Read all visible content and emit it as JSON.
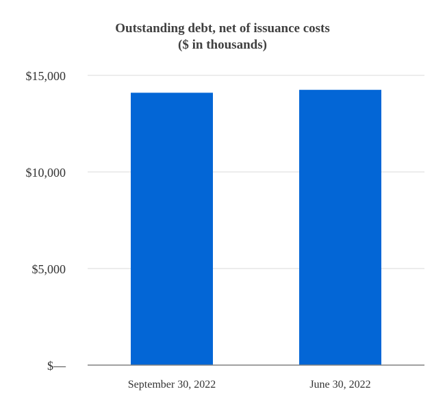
{
  "chart_data": {
    "type": "bar",
    "title": "Outstanding debt, net of issuance costs",
    "subtitle": "($ in thousands)",
    "categories": [
      "September 30, 2022",
      "June 30, 2022"
    ],
    "values": [
      14100,
      14250
    ],
    "ylim": [
      0,
      15000
    ],
    "yticks": [
      0,
      5000,
      10000,
      15000
    ],
    "ytick_labels": [
      "$—",
      "$5,000",
      "$10,000",
      "$15,000"
    ],
    "grid": true,
    "bar_color": "#0366d6",
    "grid_color": "#d9d9d9",
    "axis_color": "#808080"
  }
}
